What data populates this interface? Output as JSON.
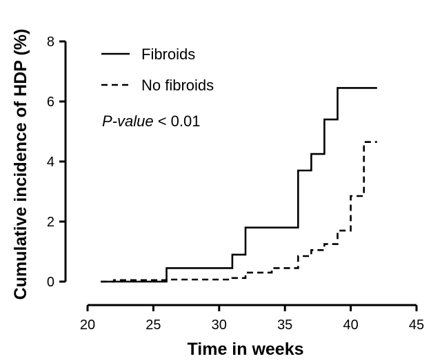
{
  "chart_data": {
    "type": "line",
    "step": true,
    "xlabel": "Time in weeks",
    "ylabel": "Cumulative incidence of HDP (%)",
    "xlim": [
      20,
      45
    ],
    "ylim": [
      0,
      8
    ],
    "xticks": [
      "20",
      "25",
      "30",
      "35",
      "40",
      "45"
    ],
    "yticks": [
      "0",
      "2",
      "4",
      "6",
      "8"
    ],
    "legend_position": "top-left",
    "series": [
      {
        "name": "Fibroids",
        "style": "solid",
        "color": "#000000",
        "x": [
          21,
          26,
          26,
          31,
          31,
          32,
          32,
          36,
          36,
          37,
          37,
          38,
          38,
          39,
          39,
          42
        ],
        "y": [
          0,
          0,
          0.45,
          0.45,
          0.9,
          0.9,
          1.8,
          1.8,
          3.7,
          3.7,
          4.25,
          4.25,
          5.4,
          5.4,
          6.45,
          6.45
        ]
      },
      {
        "name": "No fibroids",
        "style": "dashed",
        "color": "#000000",
        "x": [
          21,
          22,
          22,
          26,
          26,
          31,
          31,
          32,
          32,
          34,
          34,
          36,
          36,
          37,
          37,
          38,
          38,
          39,
          39,
          40,
          40,
          41,
          41,
          42
        ],
        "y": [
          0,
          0,
          0.05,
          0.05,
          0.07,
          0.07,
          0.12,
          0.12,
          0.3,
          0.3,
          0.45,
          0.45,
          0.85,
          0.85,
          1.05,
          1.05,
          1.25,
          1.25,
          1.7,
          1.7,
          2.85,
          2.85,
          4.65,
          4.65
        ]
      }
    ],
    "annotation": {
      "italic_part": "P-value",
      "rest": " < 0.01"
    }
  }
}
